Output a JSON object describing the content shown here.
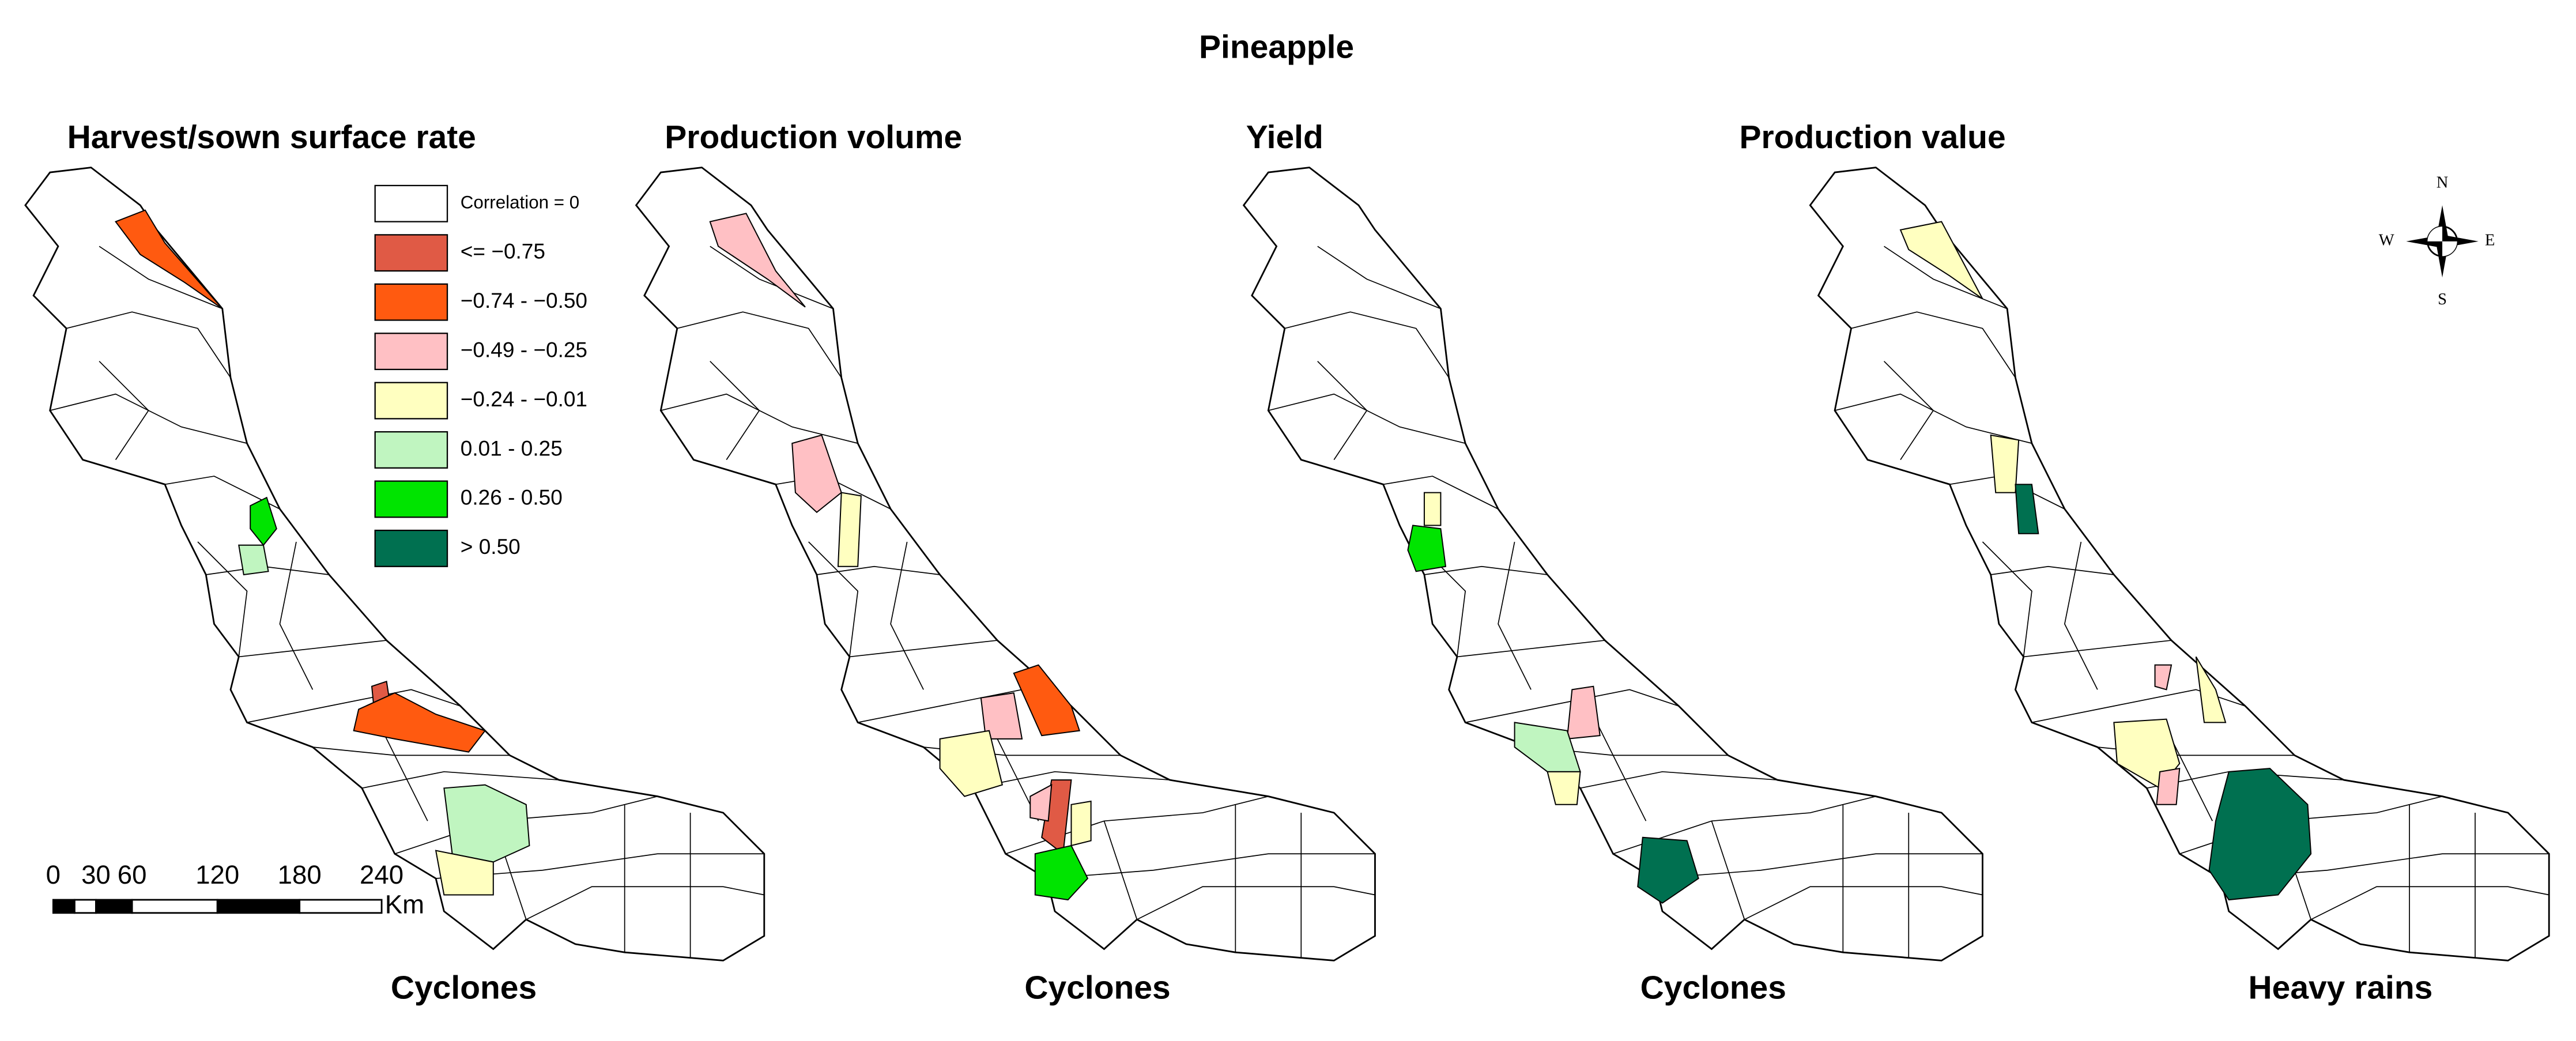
{
  "title": "Pineapple",
  "panels": [
    {
      "title": "Harvest/sown surface rate",
      "label": "Cyclones"
    },
    {
      "title": "Production volume",
      "label": "Cyclones"
    },
    {
      "title": "Yield",
      "label": "Cyclones"
    },
    {
      "title": "Production value",
      "label": "Heavy rains"
    }
  ],
  "legend": [
    {
      "label": "Correlation = 0",
      "color": "#ffffff"
    },
    {
      "label": "<= −0.75",
      "color": "#e05a45"
    },
    {
      "label": "−0.74 - −0.50",
      "color": "#ff5a10"
    },
    {
      "label": "−0.49 - −0.25",
      "color": "#ffc0c4"
    },
    {
      "label": "−0.24 - −0.01",
      "color": "#ffffc0"
    },
    {
      "label": "0.01 - 0.25",
      "color": "#c0f5c0"
    },
    {
      "label": "0.26 - 0.50",
      "color": "#00e400"
    },
    {
      "label": "> 0.50",
      "color": "#007050"
    }
  ],
  "scale_bar": {
    "ticks": [
      "0",
      "30",
      "60",
      "120",
      "180",
      "240"
    ],
    "unit": "Km"
  },
  "compass": {
    "north": "N",
    "south": "S",
    "east": "E",
    "west": "W"
  }
}
